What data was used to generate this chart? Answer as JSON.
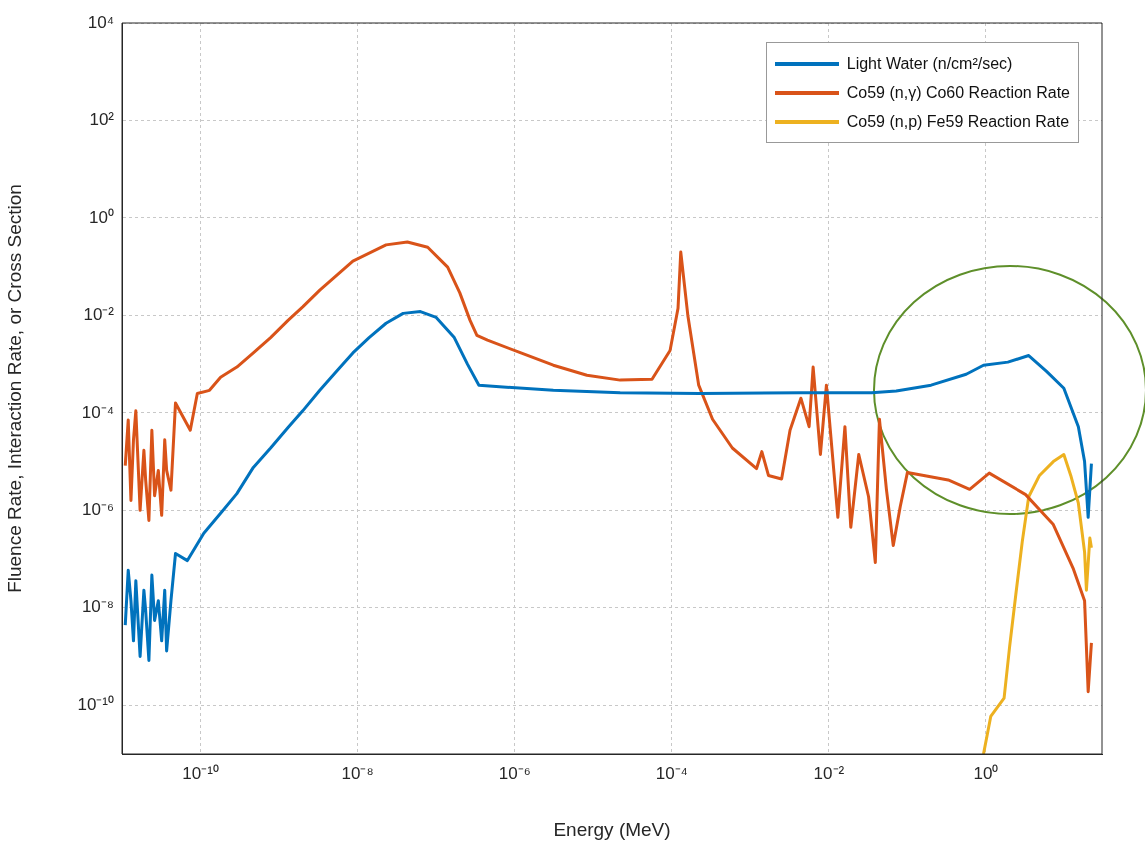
{
  "chart_data": {
    "type": "line",
    "xlabel": "Energy (MeV)",
    "ylabel": "Fluence Rate, Interaction Rate, or Cross Section",
    "log": "xy",
    "grid": true,
    "legend": "top right",
    "marker": "none",
    "line_style": "solid",
    "xlim": [
      1e-11,
      30
    ],
    "ylim": [
      1e-11,
      10000
    ],
    "xticks": [
      {
        "value": 1e-10,
        "label": "10⁻¹⁰"
      },
      {
        "value": 1e-08,
        "label": "10⁻⁸"
      },
      {
        "value": 1e-06,
        "label": "10⁻⁶"
      },
      {
        "value": 0.0001,
        "label": "10⁻⁴"
      },
      {
        "value": 0.01,
        "label": "10⁻²"
      },
      {
        "value": 1,
        "label": "10⁰"
      }
    ],
    "yticks": [
      {
        "value": 1e-10,
        "label": "10⁻¹⁰"
      },
      {
        "value": 1e-08,
        "label": "10⁻⁸"
      },
      {
        "value": 1e-06,
        "label": "10⁻⁶"
      },
      {
        "value": 0.0001,
        "label": "10⁻⁴"
      },
      {
        "value": 0.01,
        "label": "10⁻²"
      },
      {
        "value": 1,
        "label": "10⁰"
      },
      {
        "value": 100,
        "label": "10²"
      },
      {
        "value": 10000,
        "label": "10⁴"
      }
    ],
    "series": [
      {
        "name": "Light Water (n/cm²/sec)",
        "color": "#0072bd",
        "x": [
          1.1e-11,
          1.2e-11,
          1.3e-11,
          1.4e-11,
          1.5e-11,
          1.7e-11,
          1.9e-11,
          2e-11,
          2.2e-11,
          2.4e-11,
          2.6e-11,
          2.9e-11,
          3.2e-11,
          3.5e-11,
          3.7e-11,
          4.2e-11,
          4.8e-11,
          6.8e-11,
          1.1e-10,
          1.8e-10,
          2.9e-10,
          4.7e-10,
          7.8e-10,
          1.3e-09,
          2e-09,
          3.3e-09,
          5.5e-09,
          8.7e-09,
          1.4e-08,
          2.3e-08,
          3.8e-08,
          6.3e-08,
          1e-07,
          1.7e-07,
          2.5e-07,
          3.5e-07,
          7.1e-07,
          3.1e-06,
          2.2e-05,
          0.00023,
          0.0044,
          0.035,
          0.072,
          0.2,
          0.56,
          0.93,
          1.9,
          3.5,
          5.9,
          9.8,
          15,
          18,
          20,
          22
        ],
        "values": [
          4.4e-09,
          5.9e-08,
          1.4e-08,
          2.1e-09,
          3.6e-08,
          1e-09,
          2.3e-08,
          8.9e-09,
          8.3e-10,
          4.7e-08,
          5.5e-09,
          1.4e-08,
          2.1e-09,
          2.3e-08,
          1.3e-09,
          1.4e-08,
          1.3e-07,
          9.3e-08,
          3.4e-07,
          8.7e-07,
          2.2e-06,
          7.6e-06,
          1.9e-05,
          5e-05,
          0.00011,
          0.00029,
          0.00074,
          0.0017,
          0.0035,
          0.0069,
          0.011,
          0.012,
          0.0091,
          0.0035,
          0.001,
          0.00037,
          0.00034,
          0.00029,
          0.00026,
          0.00025,
          0.00026,
          0.00026,
          0.00028,
          0.00037,
          0.00062,
          0.00095,
          0.0011,
          0.0015,
          0.00071,
          0.00032,
          5.2e-05,
          1e-05,
          7.2e-07,
          9.1e-06
        ]
      },
      {
        "name": "Co59 (n,γ) Co60 Reaction Rate",
        "color": "#d95319",
        "x": [
          1.1e-11,
          1.2e-11,
          1.3e-11,
          1.4e-11,
          1.5e-11,
          1.7e-11,
          1.9e-11,
          2e-11,
          2.2e-11,
          2.4e-11,
          2.6e-11,
          2.9e-11,
          3.2e-11,
          3.5e-11,
          3.7e-11,
          4.2e-11,
          4.8e-11,
          7.4e-11,
          9.1e-11,
          1.3e-10,
          1.8e-10,
          2.9e-10,
          4.7e-10,
          7.8e-10,
          1.3e-09,
          2e-09,
          3.3e-09,
          8.7e-09,
          2.3e-08,
          4.3e-08,
          7.8e-08,
          1.4e-07,
          2e-07,
          2.7e-07,
          3.3e-07,
          4.5e-07,
          1.2e-06,
          3.1e-06,
          8.3e-06,
          2.2e-05,
          5.6e-05,
          9.5e-05,
          0.00012,
          0.00013,
          0.00016,
          0.00022,
          0.00033,
          0.00059,
          0.0012,
          0.0014,
          0.0017,
          0.0025,
          0.0032,
          0.0044,
          0.0056,
          0.0063,
          0.0078,
          0.0093,
          0.013,
          0.016,
          0.019,
          0.024,
          0.032,
          0.039,
          0.044,
          0.054,
          0.066,
          0.081,
          0.1,
          0.33,
          0.62,
          1.1,
          3.2,
          7.2,
          13,
          18,
          20,
          22
        ],
        "values": [
          8.3e-06,
          7.1e-05,
          1.6e-06,
          2.8e-05,
          0.00011,
          1e-06,
          1.7e-05,
          4.2e-06,
          6.2e-07,
          4.4e-05,
          2e-06,
          6.6e-06,
          7.9e-07,
          2.8e-05,
          6.6e-06,
          2.6e-06,
          0.00016,
          4.4e-05,
          0.00025,
          0.00029,
          0.00054,
          0.00087,
          0.0017,
          0.0035,
          0.0079,
          0.015,
          0.033,
          0.13,
          0.28,
          0.32,
          0.25,
          0.098,
          0.029,
          0.0079,
          0.0039,
          0.0031,
          0.0017,
          0.00095,
          0.00059,
          0.00047,
          0.00049,
          0.0019,
          0.014,
          0.2,
          0.01,
          0.00037,
          7.4e-05,
          1.9e-05,
          7.2e-06,
          1.6e-05,
          5.2e-06,
          4.4e-06,
          4.4e-05,
          0.0002,
          5.2e-05,
          0.00087,
          1.4e-05,
          0.00037,
          7.2e-07,
          5.2e-05,
          4.5e-07,
          1.4e-05,
          1.9e-06,
          8.5e-08,
          7.4e-05,
          2.7e-06,
          1.9e-07,
          1.2e-06,
          6e-06,
          4.2e-06,
          2.7e-06,
          5.8e-06,
          2.1e-06,
          5.1e-07,
          6.2e-08,
          1.4e-08,
          1.9e-10,
          1.9e-09
        ]
      },
      {
        "name": "Co59 (n,p) Fe59 Reaction Rate",
        "color": "#edb120",
        "x": [
          0.93,
          1.15,
          1.7,
          2.0,
          2.4,
          2.9,
          3.5,
          4.8,
          7.2,
          9.8,
          12,
          15,
          18,
          19,
          21,
          22
        ],
        "values": [
          1e-11,
          5.9e-11,
          1.4e-10,
          1.6e-09,
          1.9e-08,
          2.3e-07,
          1.9e-06,
          5.2e-06,
          1e-05,
          1.4e-05,
          5.2e-06,
          1.4e-06,
          1.4e-07,
          2.3e-08,
          2.7e-07,
          1.7e-07
        ]
      }
    ]
  }
}
